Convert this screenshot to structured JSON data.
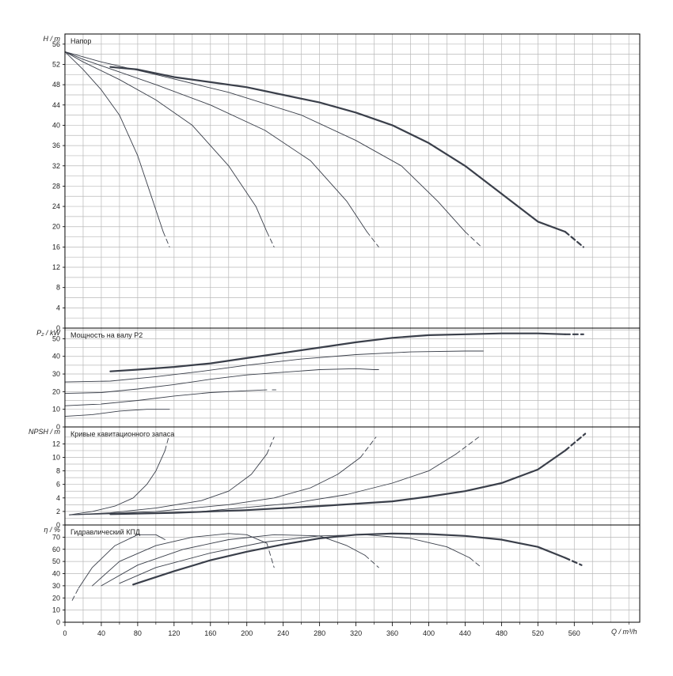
{
  "chart_data": [
    {
      "type": "line",
      "title": "Напор",
      "ylabel_sym": "H",
      "ylabel_unit": "m",
      "ylim": [
        0,
        58
      ],
      "yticks": [
        0,
        4,
        8,
        12,
        16,
        20,
        24,
        28,
        32,
        36,
        40,
        44,
        48,
        52,
        56
      ],
      "series": [
        {
          "points": [
            [
              0,
              54.5
            ],
            [
              20,
              51
            ],
            [
              40,
              47
            ],
            [
              60,
              42
            ],
            [
              80,
              34
            ],
            [
              95,
              26
            ],
            [
              108,
              19
            ]
          ],
          "dashed": [
            [
              108,
              19
            ],
            [
              115,
              16
            ]
          ]
        },
        {
          "points": [
            [
              0,
              54.5
            ],
            [
              20,
              52.5
            ],
            [
              60,
              49
            ],
            [
              100,
              45
            ],
            [
              140,
              40
            ],
            [
              180,
              32
            ],
            [
              210,
              24
            ],
            [
              222,
              19
            ]
          ],
          "dashed": [
            [
              222,
              19
            ],
            [
              230,
              16
            ]
          ]
        },
        {
          "points": [
            [
              0,
              54.5
            ],
            [
              20,
              53
            ],
            [
              60,
              50.5
            ],
            [
              100,
              48
            ],
            [
              160,
              44
            ],
            [
              220,
              39
            ],
            [
              270,
              33
            ],
            [
              310,
              25
            ],
            [
              332,
              19
            ]
          ],
          "dashed": [
            [
              332,
              19
            ],
            [
              345,
              16
            ]
          ]
        },
        {
          "points": [
            [
              0,
              54.5
            ],
            [
              40,
              52.5
            ],
            [
              100,
              50
            ],
            [
              180,
              46.5
            ],
            [
              260,
              42
            ],
            [
              320,
              37
            ],
            [
              370,
              32
            ],
            [
              410,
              25
            ],
            [
              440,
              19
            ]
          ],
          "dashed": [
            [
              440,
              19
            ],
            [
              458,
              16
            ]
          ]
        },
        {
          "points": [
            [
              50,
              51.5
            ],
            [
              80,
              51
            ],
            [
              120,
              49.5
            ],
            [
              160,
              48.5
            ],
            [
              200,
              47.5
            ],
            [
              240,
              46
            ],
            [
              280,
              44.5
            ],
            [
              320,
              42.5
            ],
            [
              360,
              40
            ],
            [
              400,
              36.5
            ],
            [
              440,
              32
            ],
            [
              480,
              26.5
            ],
            [
              520,
              21
            ],
            [
              550,
              19
            ]
          ],
          "dashed": [
            [
              550,
              19
            ],
            [
              570,
              16
            ]
          ],
          "thick": true
        }
      ]
    },
    {
      "type": "line",
      "title": "Мощность на валу P2",
      "ylabel_sym": "P₂",
      "ylabel_unit": "kW",
      "ylim": [
        0,
        56
      ],
      "yticks": [
        0,
        10,
        20,
        30,
        40,
        50
      ],
      "series": [
        {
          "points": [
            [
              0,
              6
            ],
            [
              30,
              7
            ],
            [
              60,
              9
            ],
            [
              90,
              10
            ],
            [
              115,
              10
            ]
          ]
        },
        {
          "points": [
            [
              0,
              12
            ],
            [
              40,
              13
            ],
            [
              80,
              15
            ],
            [
              120,
              17.5
            ],
            [
              160,
              19.5
            ],
            [
              200,
              20.5
            ],
            [
              222,
              21
            ]
          ],
          "dashed": [
            [
              228,
              21
            ],
            [
              232,
              21
            ]
          ]
        },
        {
          "points": [
            [
              0,
              19
            ],
            [
              40,
              19.5
            ],
            [
              80,
              21.5
            ],
            [
              120,
              24
            ],
            [
              160,
              27
            ],
            [
              200,
              29.5
            ],
            [
              240,
              31
            ],
            [
              280,
              32.5
            ],
            [
              320,
              33
            ],
            [
              340,
              32.5
            ]
          ],
          "dashed": [
            [
              340,
              32.5
            ],
            [
              345,
              32.5
            ]
          ]
        },
        {
          "points": [
            [
              0,
              25.5
            ],
            [
              50,
              26
            ],
            [
              100,
              28.5
            ],
            [
              150,
              31.5
            ],
            [
              200,
              35
            ],
            [
              260,
              38.5
            ],
            [
              320,
              41
            ],
            [
              380,
              42.5
            ],
            [
              440,
              43
            ],
            [
              458,
              43
            ]
          ],
          "dashed": [
            [
              458,
              43
            ],
            [
              460,
              43
            ]
          ]
        },
        {
          "points": [
            [
              50,
              31.5
            ],
            [
              80,
              32.5
            ],
            [
              120,
              34
            ],
            [
              160,
              36
            ],
            [
              200,
              39
            ],
            [
              240,
              42
            ],
            [
              280,
              45
            ],
            [
              320,
              48
            ],
            [
              360,
              50.5
            ],
            [
              400,
              52
            ],
            [
              440,
              52.5
            ],
            [
              480,
              53
            ],
            [
              520,
              53
            ],
            [
              550,
              52.5
            ]
          ],
          "dashed": [
            [
              550,
              52.5
            ],
            [
              570,
              52.5
            ]
          ],
          "thick": true
        }
      ]
    },
    {
      "type": "line",
      "title": "Кривые кавитационного запаса",
      "ylabel_sym": "NPSH",
      "ylabel_unit": "m",
      "ylim": [
        0,
        14.5
      ],
      "yticks": [
        0,
        2,
        4,
        6,
        8,
        10,
        12
      ],
      "series": [
        {
          "points": [
            [
              5,
              1.5
            ],
            [
              30,
              2
            ],
            [
              55,
              2.8
            ],
            [
              75,
              4
            ],
            [
              90,
              6
            ],
            [
              100,
              8
            ],
            [
              110,
              11
            ]
          ],
          "dashed": [
            [
              110,
              11
            ],
            [
              114,
              13
            ]
          ]
        },
        {
          "points": [
            [
              5,
              1.5
            ],
            [
              50,
              1.8
            ],
            [
              100,
              2.5
            ],
            [
              150,
              3.6
            ],
            [
              180,
              5
            ],
            [
              205,
              7.5
            ],
            [
              222,
              10.5
            ]
          ],
          "dashed": [
            [
              222,
              10.5
            ],
            [
              230,
              13
            ]
          ]
        },
        {
          "points": [
            [
              5,
              1.5
            ],
            [
              100,
              2
            ],
            [
              180,
              3
            ],
            [
              230,
              4
            ],
            [
              270,
              5.5
            ],
            [
              300,
              7.5
            ],
            [
              325,
              10
            ]
          ],
          "dashed": [
            [
              325,
              10
            ],
            [
              342,
              13
            ]
          ]
        },
        {
          "points": [
            [
              5,
              1.5
            ],
            [
              150,
              2
            ],
            [
              250,
              3.2
            ],
            [
              310,
              4.5
            ],
            [
              360,
              6.2
            ],
            [
              400,
              8
            ],
            [
              430,
              10.5
            ]
          ],
          "dashed": [
            [
              430,
              10.5
            ],
            [
              455,
              13
            ]
          ]
        },
        {
          "points": [
            [
              50,
              1.6
            ],
            [
              120,
              1.8
            ],
            [
              200,
              2.2
            ],
            [
              280,
              2.8
            ],
            [
              360,
              3.5
            ],
            [
              400,
              4.2
            ],
            [
              440,
              5
            ],
            [
              480,
              6.2
            ],
            [
              520,
              8.2
            ],
            [
              550,
              11
            ]
          ],
          "dashed": [
            [
              550,
              11
            ],
            [
              572,
              13.5
            ]
          ],
          "thick": true
        }
      ]
    },
    {
      "type": "line",
      "title": "Гидравлический КПД",
      "ylabel_sym": "η",
      "ylabel_unit": "%",
      "ylim": [
        0,
        80
      ],
      "yticks": [
        0,
        10,
        20,
        30,
        40,
        50,
        60,
        70
      ],
      "series": [
        {
          "points": [
            [
              15,
              28
            ],
            [
              30,
              45
            ],
            [
              55,
              63
            ],
            [
              80,
              72
            ],
            [
              100,
              72
            ],
            [
              110,
              68
            ]
          ],
          "dashed": [
            [
              8,
              18
            ],
            [
              15,
              28
            ]
          ]
        },
        {
          "points": [
            [
              30,
              30
            ],
            [
              60,
              50
            ],
            [
              100,
              63
            ],
            [
              140,
              70
            ],
            [
              180,
              73
            ],
            [
              200,
              72
            ],
            [
              222,
              65
            ]
          ],
          "dashed": [
            [
              222,
              65
            ],
            [
              230,
              45
            ]
          ]
        },
        {
          "points": [
            [
              40,
              30
            ],
            [
              80,
              47
            ],
            [
              130,
              60
            ],
            [
              180,
              68
            ],
            [
              230,
              72
            ],
            [
              280,
              71
            ],
            [
              310,
              63
            ],
            [
              330,
              55
            ]
          ],
          "dashed": [
            [
              330,
              55
            ],
            [
              345,
              45
            ]
          ]
        },
        {
          "points": [
            [
              60,
              32
            ],
            [
              100,
              45
            ],
            [
              160,
              57
            ],
            [
              220,
              66
            ],
            [
              280,
              71
            ],
            [
              330,
              72
            ],
            [
              380,
              69
            ],
            [
              420,
              62
            ],
            [
              445,
              53
            ]
          ],
          "dashed": [
            [
              445,
              53
            ],
            [
              458,
              45
            ]
          ]
        },
        {
          "points": [
            [
              75,
              31
            ],
            [
              120,
              42
            ],
            [
              160,
              51
            ],
            [
              200,
              58
            ],
            [
              240,
              64
            ],
            [
              280,
              69
            ],
            [
              320,
              72
            ],
            [
              360,
              73
            ],
            [
              400,
              72.5
            ],
            [
              440,
              71
            ],
            [
              480,
              68
            ],
            [
              520,
              62
            ],
            [
              550,
              53
            ]
          ],
          "dashed": [
            [
              550,
              53
            ],
            [
              568,
              47
            ]
          ],
          "thick": true
        }
      ]
    }
  ],
  "x_axis": {
    "label": "Q / m³/h",
    "ticks": [
      0,
      40,
      80,
      120,
      160,
      200,
      240,
      280,
      320,
      360,
      400,
      440,
      480,
      520,
      560
    ],
    "xlim": [
      0,
      632
    ]
  },
  "colors": {
    "curve": "#3a3f4a",
    "grid": "#b9b9b9",
    "frame": "#000000"
  }
}
